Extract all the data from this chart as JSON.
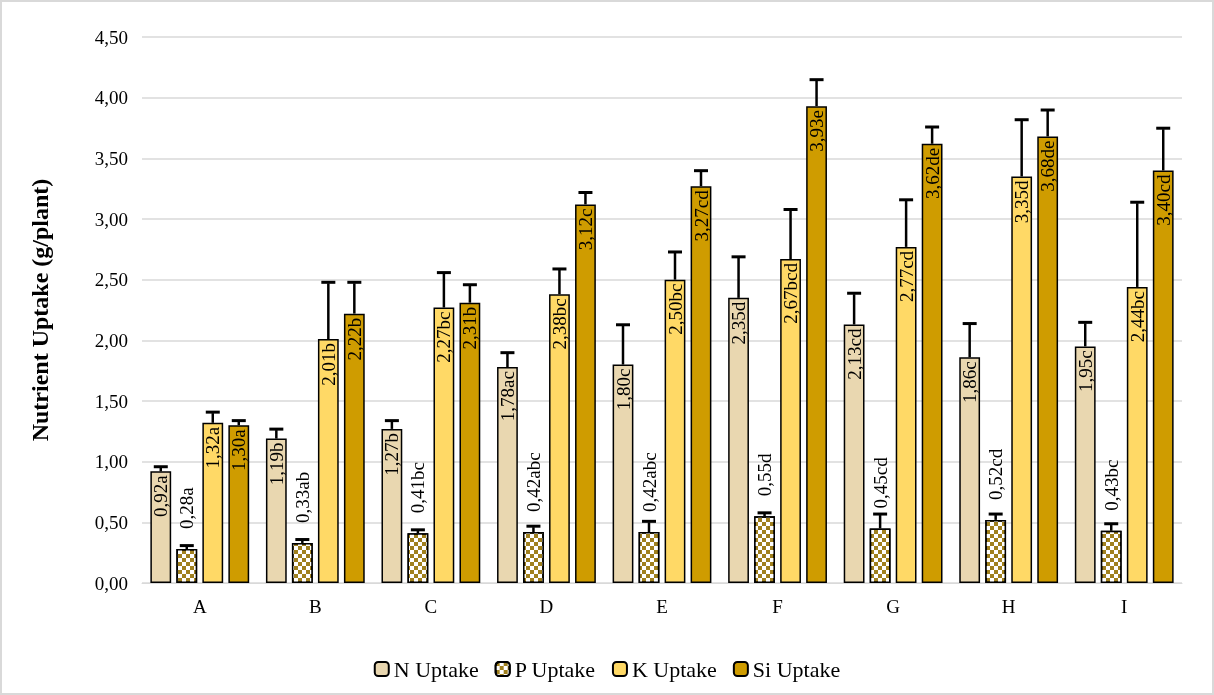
{
  "chart_data": {
    "type": "bar",
    "ylabel": "Nutrient Uptake (g/plant)",
    "categories": [
      "A",
      "B",
      "C",
      "D",
      "E",
      "F",
      "G",
      "H",
      "I"
    ],
    "series": [
      {
        "name": "N Uptake",
        "color": "#e9d7b0",
        "values": [
          0.92,
          1.19,
          1.27,
          1.78,
          1.8,
          2.35,
          2.13,
          1.86,
          1.95
        ],
        "errors": [
          0.03,
          0.07,
          0.06,
          0.11,
          0.32,
          0.33,
          0.25,
          0.27,
          0.19
        ],
        "value_labels": [
          "0,92a",
          "1,19b",
          "1,27b",
          "1,78ac",
          "1,80c",
          "2,35d",
          "2,13cd",
          "1,86c",
          "1,95c"
        ]
      },
      {
        "name": "P Uptake",
        "color": "#a0801e",
        "values": [
          0.28,
          0.33,
          0.41,
          0.42,
          0.42,
          0.55,
          0.45,
          0.52,
          0.43
        ],
        "errors": [
          0.02,
          0.02,
          0.02,
          0.04,
          0.08,
          0.02,
          0.11,
          0.04,
          0.05
        ],
        "value_labels": [
          "0,28a",
          "0,33ab",
          "0,41bc",
          "0,42abc",
          "0,42abc",
          "0,55d",
          "0,45cd",
          "0,52cd",
          "0,43bc"
        ]
      },
      {
        "name": "K Uptake",
        "color": "#ffd966",
        "values": [
          1.32,
          2.01,
          2.27,
          2.38,
          2.5,
          2.67,
          2.77,
          3.35,
          2.44
        ],
        "errors": [
          0.08,
          0.46,
          0.28,
          0.2,
          0.22,
          0.4,
          0.38,
          0.46,
          0.69
        ],
        "value_labels": [
          "1,32a",
          "2,01b",
          "2,27bc",
          "2,38bc",
          "2,50bc",
          "2,67bcd",
          "2,77cd",
          "3,35d",
          "2,44bc"
        ]
      },
      {
        "name": "Si Uptake",
        "color": "#cf9c00",
        "values": [
          1.3,
          2.22,
          2.31,
          3.12,
          3.27,
          3.93,
          3.62,
          3.68,
          3.4
        ],
        "errors": [
          0.03,
          0.25,
          0.14,
          0.09,
          0.12,
          0.21,
          0.13,
          0.21,
          0.34
        ],
        "value_labels": [
          "1,30a",
          "2,22b",
          "2,31b",
          "3,12c",
          "3,27cd",
          "3,93e",
          "3,62de",
          "3,68de",
          "3,40cd"
        ]
      }
    ],
    "ylim": [
      0,
      4.5
    ],
    "yticks": [
      {
        "value": 0,
        "label": "0,00"
      },
      {
        "value": 0.5,
        "label": "0,50"
      },
      {
        "value": 1,
        "label": "1,00"
      },
      {
        "value": 1.5,
        "label": "1,50"
      },
      {
        "value": 2,
        "label": "2,00"
      },
      {
        "value": 2.5,
        "label": "2,50"
      },
      {
        "value": 3,
        "label": "3,00"
      },
      {
        "value": 3.5,
        "label": "3,50"
      },
      {
        "value": 4,
        "label": "4,00"
      },
      {
        "value": 4.5,
        "label": "4,50"
      }
    ],
    "grid": "y",
    "legend": "bottom"
  }
}
